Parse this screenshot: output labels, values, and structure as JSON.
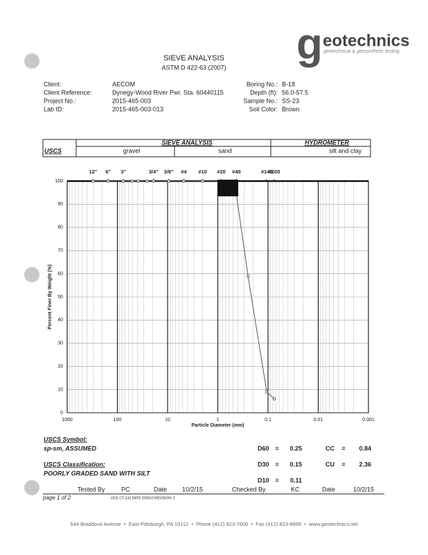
{
  "header": {
    "logo_g": "g",
    "logo_rest": "eotechnics",
    "tagline": "geotechnical & geosynthetic testing",
    "title": "SIEVE ANALYSIS",
    "subtitle": "ASTM D 422-63 (2007)"
  },
  "info": {
    "left": [
      [
        "Client:",
        "AECOM"
      ],
      [
        "Client Reference:",
        "Dynegy-Wood River Pwr. Sta. 60440115"
      ],
      [
        "Project No.:",
        "2015-465-003"
      ],
      [
        "Lab ID:",
        "2015-465-003-013"
      ]
    ],
    "right": [
      [
        "Boring No.:",
        "B-18"
      ],
      [
        "Depth (ft):",
        "56.0-57.5"
      ],
      [
        "Sample No.:",
        "SS-23"
      ],
      [
        "Soil Color:",
        "Brown"
      ]
    ]
  },
  "classification": {
    "system": "USCS",
    "sieve": "SIEVE ANALYSIS",
    "hydrometer": "HYDROMETER",
    "gravel": "gravel",
    "sand": "sand",
    "silt_clay": "silt and clay"
  },
  "chart": {
    "type": "line",
    "xlabel": "Particle Diameter (mm)",
    "ylabel": "Percent Finer By Weight (%)",
    "log_x": true,
    "color": "#555555",
    "sieves": {
      "labels": [
        "12\"",
        "6\"",
        "3\"",
        "3/4\"",
        "3/8\"",
        "#4",
        "#10",
        "#20",
        "#40",
        "#140",
        "#200"
      ],
      "sizes": [
        304.8,
        152.4,
        76.2,
        19.05,
        9.525,
        4.75,
        2.0,
        0.85,
        0.425,
        0.106,
        0.075
      ]
    },
    "x": [
      304.8,
      152.4,
      76.2,
      50.8,
      38.1,
      25.4,
      19.05,
      9.525,
      4.75,
      2.0,
      0.85,
      0.425,
      0.25,
      0.106,
      0.075
    ],
    "values": [
      100,
      100,
      100,
      100,
      100,
      100,
      100,
      100,
      100,
      100,
      100,
      94,
      59,
      9,
      6
    ],
    "xlim": [
      1000,
      0.001
    ],
    "xticks": [
      1000,
      100,
      10,
      1,
      0.1,
      0.01,
      0.001
    ],
    "ylim": [
      0,
      100
    ],
    "yticks": [
      0,
      10,
      20,
      30,
      40,
      50,
      60,
      70,
      80,
      90,
      100
    ],
    "grid": true
  },
  "uscs": {
    "symbol_label": "USCS Symbol:",
    "symbol": "sp-sm, ASSUMED",
    "class_label": "USCS Classification:",
    "class": "POORLY GRADED SAND WITH SILT"
  },
  "results": [
    [
      "D60",
      "=",
      0.25,
      "CC",
      "=",
      0.84
    ],
    [
      "D30",
      "=",
      0.15,
      "CU",
      "=",
      2.36
    ],
    [
      "D10",
      "=",
      0.11
    ]
  ],
  "signoff": {
    "tested_label": "Tested By",
    "tested": "PC",
    "date_label1": "Date",
    "date1": "10/2/15",
    "checked_label": "Checked By",
    "checked": "KC",
    "date_label2": "Date",
    "date2": "10/2/15"
  },
  "footer": {
    "page": "page 1 of 2",
    "form": "GCE CT-S10 DATE 9/30/10 REVISION: 3",
    "address": "544 Braddock Avenue  •  East Pittsburgh, PA 15112  •  Phone (412) 823-7600  •  Fax (412) 823-8999  •  www.geotechnics.net"
  }
}
